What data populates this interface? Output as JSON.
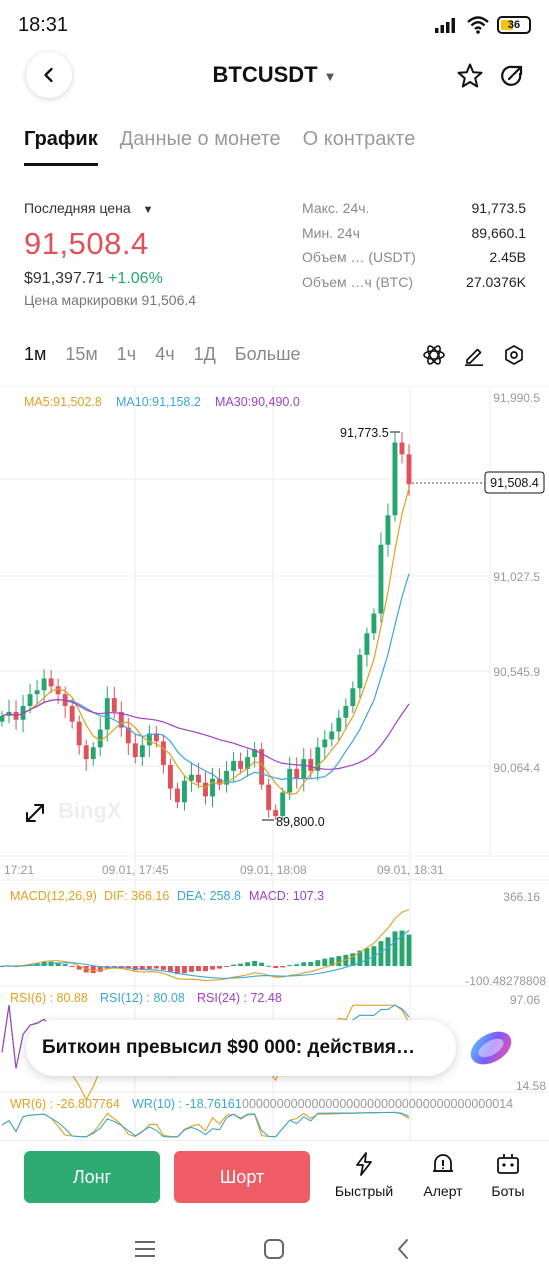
{
  "status": {
    "time": "18:31",
    "battery": "36"
  },
  "header": {
    "symbol": "BTCUSDT",
    "icons": [
      "back-arrow-icon",
      "caret-down-icon",
      "star-icon",
      "share-icon"
    ]
  },
  "tabs": [
    {
      "label": "График",
      "active": true
    },
    {
      "label": "Данные о монете",
      "active": false
    },
    {
      "label": "О контракте",
      "active": false
    }
  ],
  "price": {
    "label": "Последняя цена",
    "last": "91,508.4",
    "usd": "$91,397.71",
    "change": "+1.06%",
    "mark": "Цена маркировки 91,506.4",
    "color_down": "#e0515b",
    "color_up": "#27a56f"
  },
  "stats": [
    {
      "k": "Макс. 24ч.",
      "v": "91,773.5"
    },
    {
      "k": "Мин. 24ч",
      "v": "89,660.1"
    },
    {
      "k": "Объем … (USDT)",
      "v": "2.45B"
    },
    {
      "k": "Объем …ч (BTC)",
      "v": "27.0376K"
    }
  ],
  "intervals": [
    {
      "label": "1м",
      "active": true
    },
    {
      "label": "15м",
      "active": false
    },
    {
      "label": "1ч",
      "active": false
    },
    {
      "label": "4ч",
      "active": false
    },
    {
      "label": "1Д",
      "active": false
    },
    {
      "label": "Больше",
      "active": false
    }
  ],
  "chart_data": {
    "type": "candlestick",
    "ma_legend": {
      "ma5": "MA5:91,502.8",
      "ma10": "MA10:91,158.2",
      "ma30": "MA30:90,490.0"
    },
    "colors": {
      "up": "#27a56f",
      "down": "#e0515b",
      "ma5": "#e0a020",
      "ma10": "#3aa6d6",
      "ma30": "#a23fc6"
    },
    "y_ticks": [
      "91,990.5",
      "91,027.5",
      "90,545.9",
      "90,064.4"
    ],
    "y_tick_values": [
      91990.5,
      91027.5,
      90545.9,
      90064.4
    ],
    "x_ticks": [
      "17:21",
      "09.01, 17:45",
      "09.01, 18:08",
      "09.01, 18:31"
    ],
    "high_label": "91,773.5",
    "low_label": "89,800.0",
    "last_label": "91,508.4",
    "watermark": "BingX",
    "closes": [
      90330,
      90350,
      90310,
      90380,
      90440,
      90460,
      90520,
      90480,
      90440,
      90380,
      90300,
      90180,
      90110,
      90170,
      90260,
      90420,
      90350,
      90270,
      90190,
      90120,
      90180,
      90240,
      90200,
      90080,
      89960,
      89890,
      90000,
      90030,
      89990,
      89920,
      90010,
      89980,
      90050,
      90100,
      90060,
      90120,
      90160,
      89980,
      89850,
      89820,
      89940,
      90060,
      90010,
      90110,
      90050,
      90170,
      90210,
      90250,
      90320,
      90380,
      90470,
      90640,
      90750,
      90850,
      91200,
      91350,
      91720,
      91660,
      91508
    ]
  },
  "macd": {
    "legend": "MACD(12,26,9)",
    "dif": "DIF: 366.16",
    "dea": "DEA: 258.8",
    "macd": "MACD: 107.3",
    "top": "366.16",
    "bottom": "-100.48278808"
  },
  "rsi": {
    "r6": "RSI(6) : 80.88",
    "r12": "RSI(12) : 80.08",
    "r24": "RSI(24) : 72.48",
    "top": "97.06",
    "bottom": "14.58"
  },
  "wr": {
    "w6": "WR(6) : -26.807764",
    "w10": "WR(10) : -18.76161",
    "tail": "000000000000000000000000000000000000014"
  },
  "news": "Биткоин превысил $90 000: действия…",
  "actions": {
    "long": "Лонг",
    "short": "Шорт",
    "quick": "Быстрый",
    "alert": "Алерт",
    "bots": "Боты"
  }
}
